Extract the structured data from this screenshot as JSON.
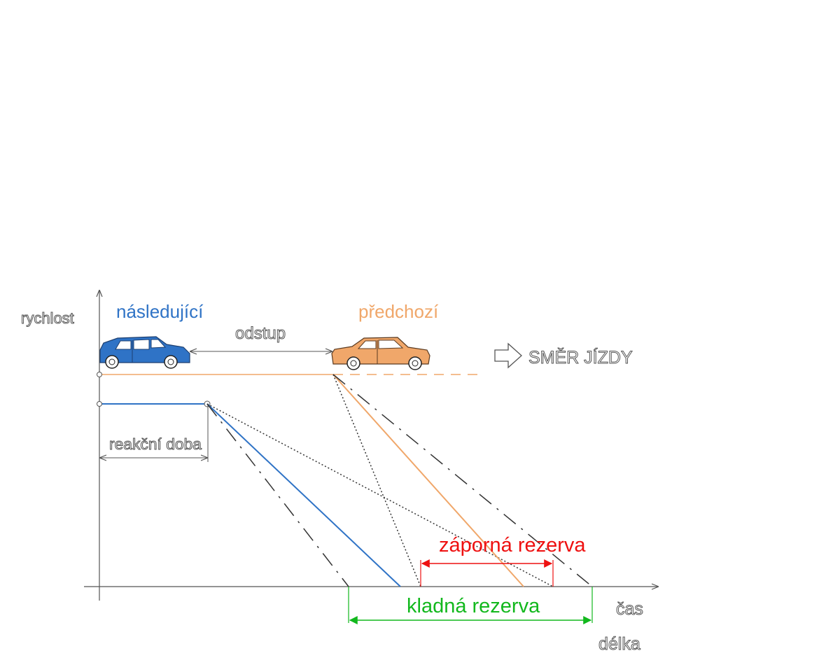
{
  "labels": {
    "y_axis": "rychlost",
    "x_axis_time": "čas",
    "x_axis_length": "délka",
    "following_car": "následující",
    "preceding_car": "předchozí",
    "gap": "odstup",
    "direction": "SMĚR JÍZDY",
    "reaction_time": "reakční doba",
    "negative_reserve": "záporná rezerva",
    "positive_reserve": "kladná rezerva"
  },
  "colors": {
    "following": "#2f73c6",
    "preceding": "#f0a76a",
    "negative_reserve": "#ee1010",
    "positive_reserve": "#12b81d",
    "axes": "#555555"
  },
  "icons": {
    "following_car": "blue-car-icon",
    "preceding_car": "orange-car-icon",
    "direction": "outline-arrow-right-icon"
  }
}
